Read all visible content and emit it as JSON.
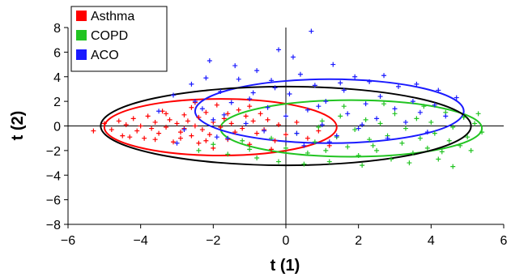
{
  "chart_data": {
    "type": "scatter",
    "title": "",
    "xlabel": "t (1)",
    "ylabel": "t (2)",
    "xlim": [
      -6,
      6
    ],
    "ylim": [
      -8,
      8
    ],
    "x_ticks": [
      -6,
      -4,
      -2,
      0,
      2,
      4,
      6
    ],
    "y_ticks": [
      -8,
      -6,
      -4,
      -2,
      0,
      2,
      4,
      6,
      8
    ],
    "x_tick_labels": [
      "−6",
      "−4",
      "−2",
      "0",
      "2",
      "4",
      "6"
    ],
    "y_tick_labels": [
      "−8",
      "−6",
      "−4",
      "−2",
      "0",
      "2",
      "4",
      "6",
      "8"
    ],
    "grid": false,
    "legend_position": "top-left",
    "marker": "+",
    "series": [
      {
        "name": "Asthma",
        "color": "#ff0000",
        "ellipse": {
          "cx": -1.8,
          "cy": -0.1,
          "rx": 3.2,
          "ry": 2.3
        },
        "points": [
          [
            -5.3,
            -0.4
          ],
          [
            -5.0,
            0.2
          ],
          [
            -4.8,
            -0.3
          ],
          [
            -4.6,
            0.4
          ],
          [
            -4.5,
            -0.8
          ],
          [
            -4.4,
            0.1
          ],
          [
            -4.2,
            0.6
          ],
          [
            -4.1,
            -0.4
          ],
          [
            -4.0,
            0.0
          ],
          [
            -3.9,
            -1.0
          ],
          [
            -3.8,
            0.8
          ],
          [
            -3.7,
            -0.2
          ],
          [
            -3.6,
            0.3
          ],
          [
            -3.5,
            -0.6
          ],
          [
            -3.4,
            1.2
          ],
          [
            -3.3,
            -0.1
          ],
          [
            -3.2,
            0.5
          ],
          [
            -3.1,
            -1.3
          ],
          [
            -3.0,
            0.2
          ],
          [
            -2.9,
            -0.5
          ],
          [
            -2.8,
            0.9
          ],
          [
            -2.8,
            -0.2
          ],
          [
            -2.7,
            0.4
          ],
          [
            -2.6,
            -0.8
          ],
          [
            -2.6,
            1.5
          ],
          [
            -2.5,
            0.0
          ],
          [
            -2.4,
            -1.4
          ],
          [
            -2.4,
            0.7
          ],
          [
            -2.3,
            -0.3
          ],
          [
            -2.2,
            1.1
          ],
          [
            -2.1,
            -0.7
          ],
          [
            -2.0,
            0.3
          ],
          [
            -2.0,
            -1.8
          ],
          [
            -1.9,
            1.7
          ],
          [
            -1.8,
            -0.1
          ],
          [
            -1.7,
            0.6
          ],
          [
            -1.6,
            -1.1
          ],
          [
            -1.5,
            0.2
          ],
          [
            -1.4,
            -0.5
          ],
          [
            -1.3,
            1.3
          ],
          [
            -1.2,
            -0.2
          ],
          [
            -1.1,
            0.8
          ],
          [
            -1.0,
            -1.5
          ],
          [
            -0.9,
            0.4
          ],
          [
            -0.8,
            -0.6
          ],
          [
            -0.7,
            1.0
          ],
          [
            -0.6,
            -0.3
          ],
          [
            -0.5,
            0.5
          ],
          [
            -0.3,
            -1.2
          ],
          [
            -0.2,
            0.1
          ],
          [
            0.0,
            -0.7
          ],
          [
            0.3,
            0.3
          ],
          [
            0.6,
            -1.0
          ],
          [
            0.9,
            -0.4
          ],
          [
            1.2,
            -1.6
          ],
          [
            -3.3,
            1.0
          ],
          [
            -2.9,
            -1.0
          ],
          [
            -2.2,
            -1.2
          ],
          [
            -1.6,
            1.0
          ],
          [
            -3.6,
            -1.1
          ],
          [
            -4.3,
            -0.9
          ],
          [
            -2.5,
            1.9
          ],
          [
            -1.0,
            1.6
          ],
          [
            -0.4,
            -1.9
          ]
        ]
      },
      {
        "name": "COPD",
        "color": "#22c422",
        "ellipse": {
          "cx": 1.8,
          "cy": -0.2,
          "rx": 3.6,
          "ry": 2.3
        },
        "points": [
          [
            -2.4,
            -2.0
          ],
          [
            -2.0,
            -1.5
          ],
          [
            -1.6,
            -2.3
          ],
          [
            -1.2,
            -1.2
          ],
          [
            -0.8,
            -2.6
          ],
          [
            -0.4,
            -1.0
          ],
          [
            0.0,
            -1.8
          ],
          [
            0.3,
            -0.6
          ],
          [
            0.6,
            -2.2
          ],
          [
            0.8,
            -1.3
          ],
          [
            1.0,
            0.4
          ],
          [
            1.2,
            -2.9
          ],
          [
            1.4,
            -0.9
          ],
          [
            1.5,
            0.8
          ],
          [
            1.7,
            -1.7
          ],
          [
            1.9,
            -0.3
          ],
          [
            2.0,
            -2.4
          ],
          [
            2.2,
            0.5
          ],
          [
            2.3,
            -1.1
          ],
          [
            2.5,
            -2.0
          ],
          [
            2.6,
            0.2
          ],
          [
            2.8,
            -0.8
          ],
          [
            2.9,
            -2.7
          ],
          [
            3.0,
            1.0
          ],
          [
            3.2,
            -1.4
          ],
          [
            3.3,
            -0.2
          ],
          [
            3.5,
            -2.2
          ],
          [
            3.6,
            0.6
          ],
          [
            3.7,
            -1.0
          ],
          [
            3.9,
            -1.8
          ],
          [
            4.0,
            0.3
          ],
          [
            4.1,
            -0.6
          ],
          [
            4.3,
            -2.1
          ],
          [
            4.4,
            1.1
          ],
          [
            4.5,
            -1.2
          ],
          [
            4.6,
            -0.1
          ],
          [
            4.8,
            -1.6
          ],
          [
            4.9,
            0.7
          ],
          [
            5.0,
            -0.9
          ],
          [
            5.1,
            -2.0
          ],
          [
            5.2,
            0.2
          ],
          [
            5.4,
            -0.5
          ],
          [
            4.6,
            -3.3
          ],
          [
            2.1,
            -3.2
          ],
          [
            3.4,
            -3.0
          ],
          [
            0.5,
            -3.1
          ],
          [
            1.6,
            1.6
          ],
          [
            2.7,
            1.8
          ],
          [
            -0.2,
            -2.9
          ],
          [
            1.1,
            -2.0
          ],
          [
            3.8,
            1.6
          ],
          [
            4.2,
            -2.7
          ],
          [
            5.3,
            1.0
          ],
          [
            0.9,
            -0.1
          ],
          [
            2.4,
            -1.6
          ],
          [
            -1.0,
            -1.9
          ]
        ]
      },
      {
        "name": "ACO",
        "color": "#1a1aff",
        "ellipse": {
          "cx": 1.2,
          "cy": 1.2,
          "rx": 3.7,
          "ry": 2.6
        },
        "points": [
          [
            -3.5,
            1.2
          ],
          [
            -3.1,
            2.5
          ],
          [
            -2.8,
            -0.3
          ],
          [
            -2.6,
            3.4
          ],
          [
            -2.3,
            1.4
          ],
          [
            -2.1,
            5.3
          ],
          [
            -2.0,
            0.5
          ],
          [
            -1.8,
            2.8
          ],
          [
            -1.6,
            -1.0
          ],
          [
            -1.5,
            1.9
          ],
          [
            -1.3,
            3.8
          ],
          [
            -1.1,
            0.2
          ],
          [
            -1.0,
            2.2
          ],
          [
            -0.8,
            4.5
          ],
          [
            -0.6,
            -0.4
          ],
          [
            -0.5,
            1.5
          ],
          [
            -0.3,
            3.1
          ],
          [
            -0.2,
            6.2
          ],
          [
            0.0,
            0.8
          ],
          [
            0.1,
            2.6
          ],
          [
            0.3,
            -0.6
          ],
          [
            0.4,
            4.2
          ],
          [
            0.6,
            1.3
          ],
          [
            0.7,
            7.7
          ],
          [
            0.8,
            3.3
          ],
          [
            1.0,
            0.1
          ],
          [
            1.1,
            2.0
          ],
          [
            1.3,
            5.0
          ],
          [
            1.4,
            -0.8
          ],
          [
            1.6,
            2.9
          ],
          [
            1.7,
            1.0
          ],
          [
            1.9,
            4.0
          ],
          [
            2.0,
            -0.2
          ],
          [
            2.2,
            1.8
          ],
          [
            2.3,
            3.6
          ],
          [
            2.5,
            0.6
          ],
          [
            2.6,
            2.4
          ],
          [
            2.8,
            -1.0
          ],
          [
            3.0,
            1.4
          ],
          [
            3.1,
            3.2
          ],
          [
            3.3,
            0.3
          ],
          [
            3.5,
            2.0
          ],
          [
            3.7,
            1.1
          ],
          [
            3.9,
            -0.5
          ],
          [
            4.1,
            1.7
          ],
          [
            4.4,
            0.8
          ],
          [
            4.7,
            2.3
          ],
          [
            -3.0,
            -1.4
          ],
          [
            -2.2,
            3.9
          ],
          [
            -1.4,
            4.9
          ],
          [
            -0.9,
            2.7
          ],
          [
            0.2,
            5.6
          ],
          [
            1.5,
            3.5
          ],
          [
            2.7,
            4.1
          ],
          [
            -1.9,
            -0.9
          ],
          [
            0.5,
            -1.6
          ],
          [
            1.2,
            -1.3
          ],
          [
            3.6,
            3.4
          ],
          [
            -0.4,
            3.7
          ],
          [
            -2.5,
            2.0
          ],
          [
            2.1,
            0.1
          ],
          [
            0.9,
            1.6
          ],
          [
            -1.7,
            0.9
          ],
          [
            4.2,
            2.9
          ]
        ]
      }
    ],
    "pooled_ellipse": {
      "color": "#000000",
      "cx": 0.0,
      "cy": 0.0,
      "rx": 5.1,
      "ry": 3.2
    }
  }
}
